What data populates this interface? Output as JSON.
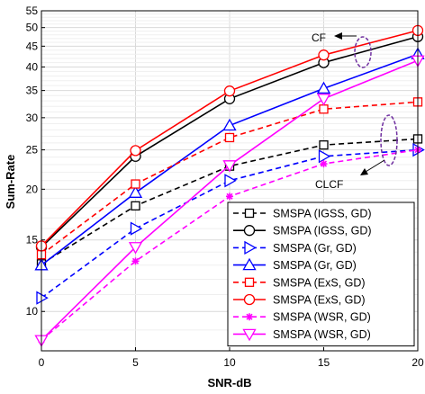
{
  "chart_data": {
    "type": "line",
    "xlabel": "SNR-dB",
    "ylabel": "Sum-Rate",
    "y_scale": "log",
    "xlim": [
      0,
      20
    ],
    "ylim": [
      8,
      55
    ],
    "grid": true,
    "x_ticks": [
      0,
      5,
      10,
      15,
      20
    ],
    "y_ticks": [
      10,
      15,
      20,
      25,
      30,
      35,
      40,
      45,
      50,
      55
    ],
    "legend_position": "bottom-right",
    "x": [
      0,
      5,
      10,
      15,
      20
    ],
    "series": [
      {
        "name": "SMSPA (IGSS, GD)",
        "values": [
          13.1,
          18.2,
          22.8,
          25.7,
          26.6
        ],
        "color": "#000000",
        "dash": "dashed",
        "marker": "square"
      },
      {
        "name": "SMSPA (IGSS, GD)",
        "values": [
          14.4,
          24.1,
          33.4,
          41.0,
          47.5
        ],
        "color": "#000000",
        "dash": "solid",
        "marker": "circle"
      },
      {
        "name": "SMSPA (Gr, GD)",
        "values": [
          10.8,
          16.0,
          21.0,
          24.1,
          25.0
        ],
        "color": "#0000ff",
        "dash": "dashed",
        "marker": "triangle-right"
      },
      {
        "name": "SMSPA (Gr, GD)",
        "values": [
          13.0,
          19.6,
          28.7,
          35.4,
          43.0
        ],
        "color": "#0000ff",
        "dash": "solid",
        "marker": "triangle-up"
      },
      {
        "name": "SMSPA (ExS, GD)",
        "values": [
          13.8,
          20.6,
          26.8,
          31.5,
          32.8
        ],
        "color": "#ff0000",
        "dash": "dashed",
        "marker": "square"
      },
      {
        "name": "SMSPA (ExS, GD)",
        "values": [
          14.5,
          24.9,
          34.9,
          42.8,
          49.2
        ],
        "color": "#ff0000",
        "dash": "solid",
        "marker": "circle"
      },
      {
        "name": "SMSPA (WSR, GD)",
        "values": [
          8.5,
          13.3,
          19.2,
          23.1,
          25.0
        ],
        "color": "#ff00ff",
        "dash": "dashed",
        "marker": "asterisk"
      },
      {
        "name": "SMSPA (WSR, GD)",
        "values": [
          8.5,
          14.4,
          22.9,
          33.4,
          41.5
        ],
        "color": "#ff00ff",
        "dash": "solid",
        "marker": "triangle-down"
      }
    ],
    "annotations": [
      {
        "text": "CF"
      },
      {
        "text": "CLCF"
      }
    ]
  }
}
